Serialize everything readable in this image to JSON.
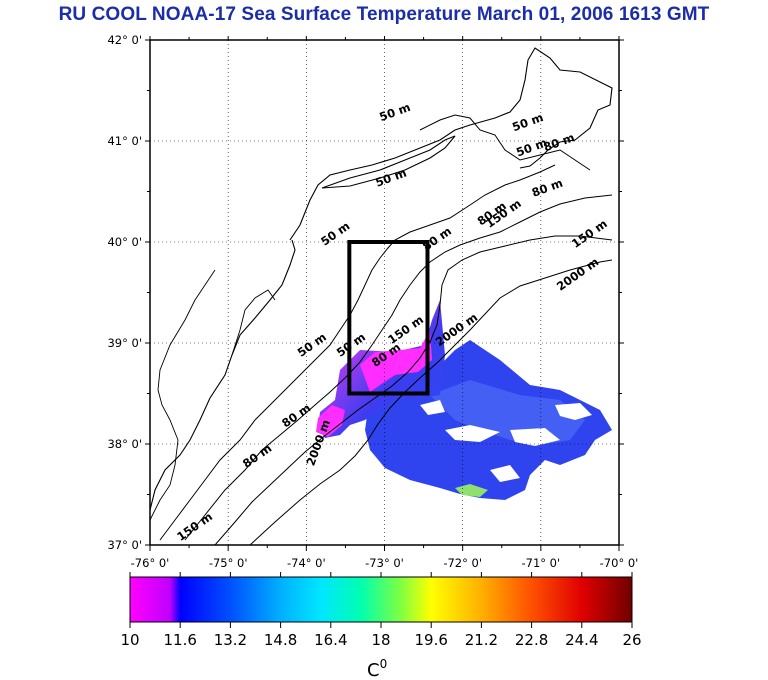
{
  "title": "RU COOL  NOAA-17 Sea Surface Temperature March 01, 2006 1613 GMT",
  "map": {
    "lat_labels": [
      "42° 0'",
      "41° 0'",
      "40° 0'",
      "39° 0'",
      "38° 0'",
      "37° 0'"
    ],
    "lon_labels": [
      "-76° 0'",
      "-75° 0'",
      "-74° 0'",
      "-73° 0'",
      "-72° 0'",
      "-71° 0'",
      "-70° 0'"
    ],
    "lat_values": [
      42,
      41,
      40,
      39,
      38,
      37
    ],
    "lon_values": [
      -76,
      -75,
      -74,
      -73,
      -72,
      -71,
      -70
    ],
    "study_box": {
      "lon_min": -73.45,
      "lon_max": -72.45,
      "lat_min": 38.5,
      "lat_max": 40.0
    }
  },
  "contour_labels": [
    {
      "text": "50 m",
      "lon": -72.85,
      "lat": 41.25
    },
    {
      "text": "50 m",
      "lon": -71.15,
      "lat": 41.15
    },
    {
      "text": "50 m",
      "lon": -71.1,
      "lat": 40.9
    },
    {
      "text": "80 m",
      "lon": -70.75,
      "lat": 40.95
    },
    {
      "text": "50 m",
      "lon": -72.9,
      "lat": 40.6
    },
    {
      "text": "80 m",
      "lon": -70.9,
      "lat": 40.5
    },
    {
      "text": "80 m",
      "lon": -71.6,
      "lat": 40.25
    },
    {
      "text": "150 m",
      "lon": -71.45,
      "lat": 40.25
    },
    {
      "text": "150 m",
      "lon": -70.35,
      "lat": 40.05
    },
    {
      "text": "80 m",
      "lon": -72.3,
      "lat": 40.0
    },
    {
      "text": "2000 m",
      "lon": -70.5,
      "lat": 39.65
    },
    {
      "text": "50 m",
      "lon": -73.6,
      "lat": 40.05
    },
    {
      "text": "2000 m",
      "lon": -72.05,
      "lat": 39.1
    },
    {
      "text": "150 m",
      "lon": -72.7,
      "lat": 39.1
    },
    {
      "text": "80 m",
      "lon": -72.95,
      "lat": 38.85
    },
    {
      "text": "50 m",
      "lon": -73.4,
      "lat": 38.95
    },
    {
      "text": "50 m",
      "lon": -73.9,
      "lat": 38.95
    },
    {
      "text": "80 m",
      "lon": -74.1,
      "lat": 38.25
    },
    {
      "text": "2000 m",
      "lon": -73.8,
      "lat": 38.0
    },
    {
      "text": "80 m",
      "lon": -74.6,
      "lat": 37.85
    },
    {
      "text": "150 m",
      "lon": -75.4,
      "lat": 37.15
    }
  ],
  "colorbar": {
    "tick_labels": [
      "10",
      "11.6",
      "13.2",
      "14.8",
      "16.4",
      "18",
      "19.6",
      "21.2",
      "22.8",
      "24.4",
      "26"
    ],
    "tick_values": [
      10,
      11.6,
      13.2,
      14.8,
      16.4,
      18,
      19.6,
      21.2,
      22.8,
      24.4,
      26
    ],
    "min": 10,
    "max": 26,
    "units": "C",
    "units_superscript": "0",
    "colors": [
      "#ff00ff",
      "#c000ff",
      "#0000ff",
      "#0060ff",
      "#00c0ff",
      "#00ffcc",
      "#80ff40",
      "#ffff00",
      "#ffa000",
      "#ff4000",
      "#ff0000",
      "#b00000",
      "#700000"
    ]
  },
  "colors": {
    "title": "#1b2ea8",
    "frame": "#000000",
    "grid": "#000000"
  }
}
